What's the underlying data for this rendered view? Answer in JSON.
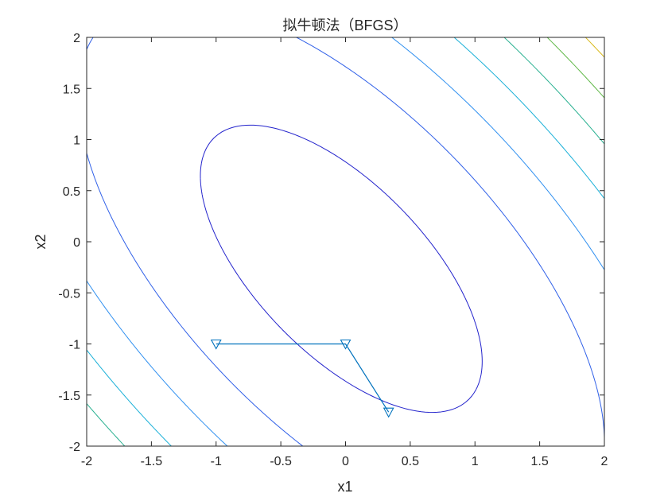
{
  "chart_data": {
    "type": "line",
    "title": "拟牛顿法（BFGS）",
    "xlabel": "x1",
    "ylabel": "x2",
    "xlim": [
      -2,
      2
    ],
    "ylim": [
      -2,
      2
    ],
    "x_ticks": [
      -2,
      -1.5,
      -1,
      -0.5,
      0,
      0.5,
      1,
      1.5,
      2
    ],
    "y_ticks": [
      -2,
      -1.5,
      -1,
      -0.5,
      0,
      0.5,
      1,
      1.5,
      2
    ],
    "x_tick_labels": [
      "-2",
      "-1.5",
      "-1",
      "-0.5",
      "0",
      "0.5",
      "1",
      "1.5",
      "2"
    ],
    "y_tick_labels": [
      "-2",
      "-1.5",
      "-1",
      "-0.5",
      "0",
      "0.5",
      "1",
      "1.5",
      "2"
    ],
    "grid": false,
    "contour": {
      "function": "x1^2 + x1*x2 + 0.6*x2^2 + 0.33*x1 + 0.35*x2 + 0.24",
      "levels": [
        0.88,
        2.6,
        4.3,
        6.0,
        7.7,
        9.4,
        11.1
      ],
      "level_colors": [
        "#2323cc",
        "#3060e8",
        "#3090f0",
        "#1ab0d8",
        "#28b090",
        "#60b848",
        "#d8b818"
      ]
    },
    "path": {
      "marker": "down-triangle",
      "color": "#0072bd",
      "points": [
        {
          "x": -1,
          "y": -1
        },
        {
          "x": 0,
          "y": -1
        },
        {
          "x": 0.333,
          "y": -1.667
        }
      ]
    }
  }
}
